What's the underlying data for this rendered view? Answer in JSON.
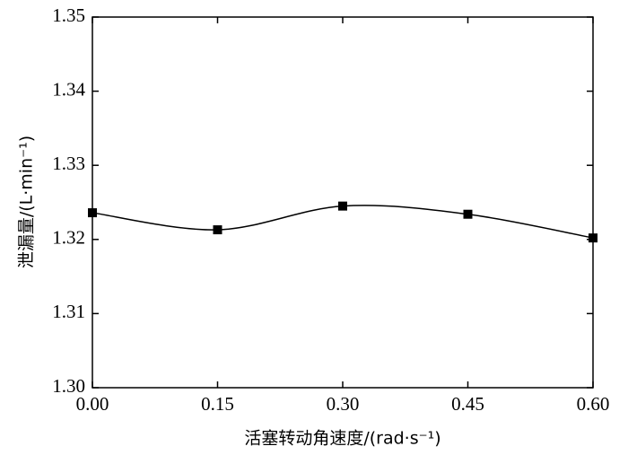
{
  "chart_data": {
    "type": "line",
    "xlabel": "活塞转动角速度/(rad·s⁻¹)",
    "ylabel": "泄漏量/(L·min⁻¹)",
    "x": [
      0.0,
      0.15,
      0.3,
      0.45,
      0.6
    ],
    "series": [
      {
        "color": "#000000",
        "values": [
          1.3236,
          1.3213,
          1.3245,
          1.3234,
          1.3202
        ]
      }
    ],
    "xlim": [
      0.0,
      0.6
    ],
    "xticks": [
      {
        "value": 0.0,
        "label": "0.00"
      },
      {
        "value": 0.15,
        "label": "0.15"
      },
      {
        "value": 0.3,
        "label": "0.30"
      },
      {
        "value": 0.45,
        "label": "0.45"
      },
      {
        "value": 0.6,
        "label": "0.60"
      }
    ],
    "ylim": [
      1.3,
      1.35
    ],
    "yticks": [
      {
        "value": 1.3,
        "label": "1.30"
      },
      {
        "value": 1.31,
        "label": "1.31"
      },
      {
        "value": 1.32,
        "label": "1.32"
      },
      {
        "value": 1.33,
        "label": "1.33"
      },
      {
        "value": 1.34,
        "label": "1.34"
      },
      {
        "value": 1.35,
        "label": "1.35"
      }
    ]
  }
}
